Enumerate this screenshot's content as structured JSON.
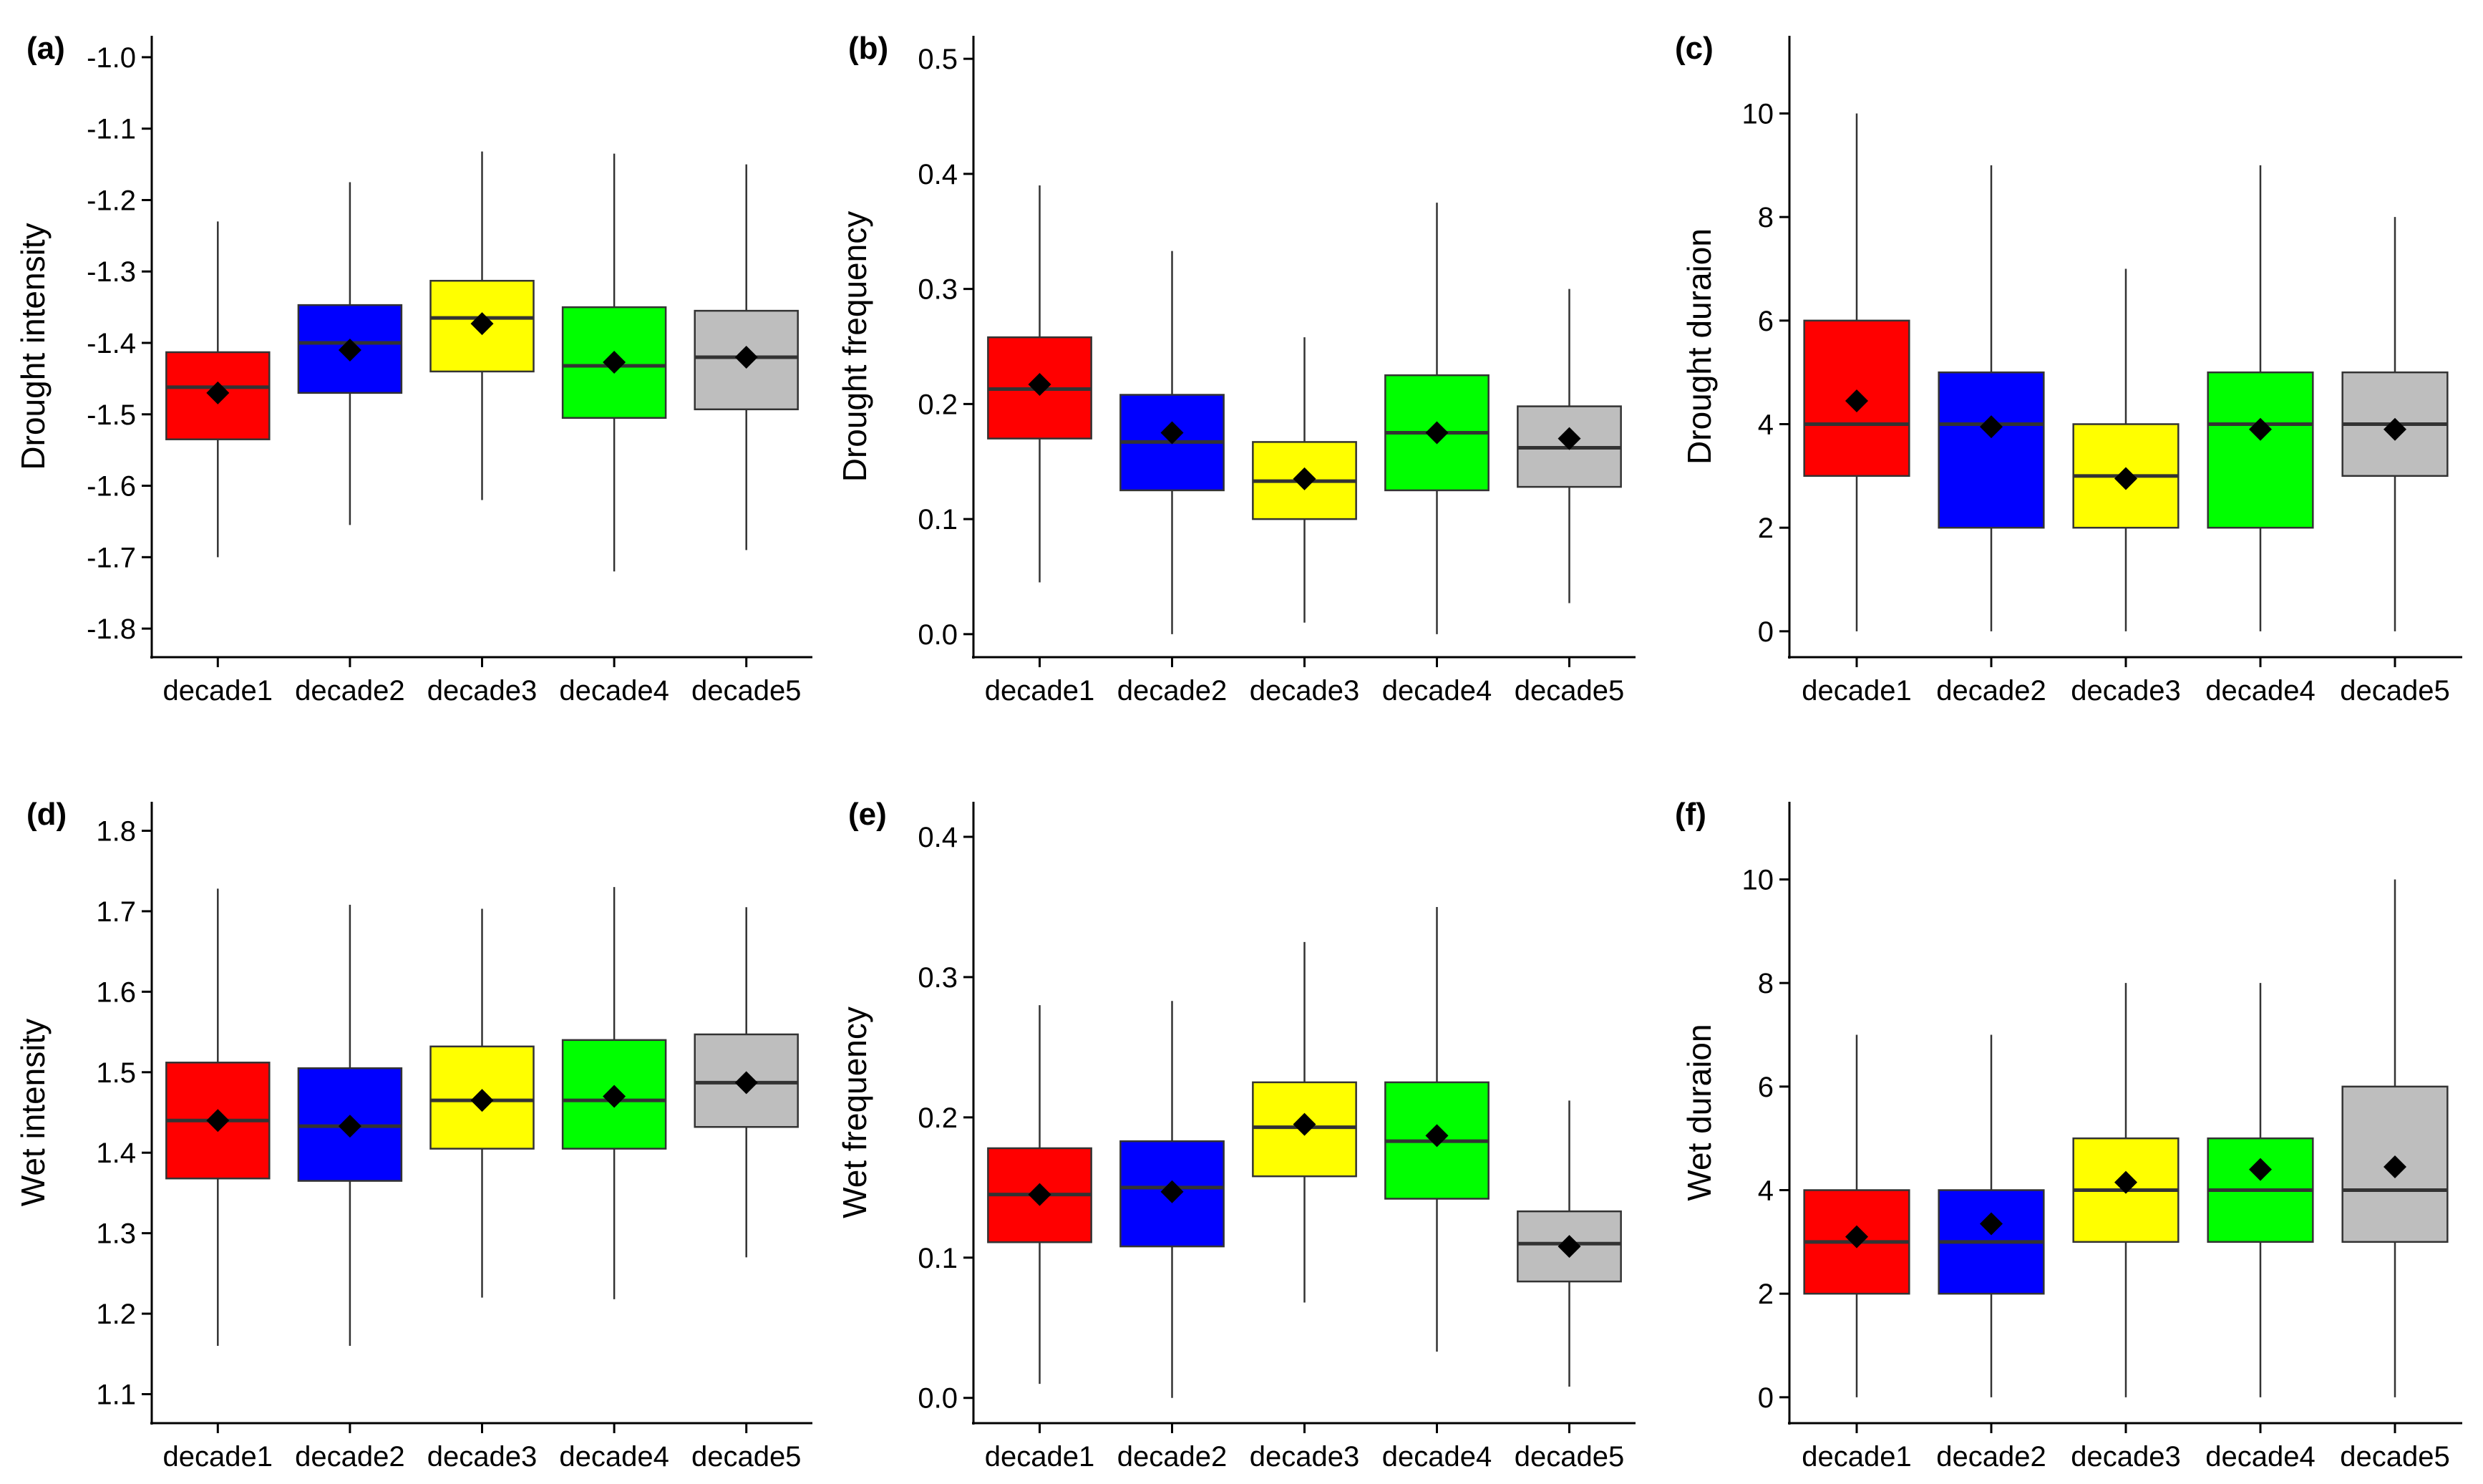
{
  "colors": {
    "decade1": "#ff0000",
    "decade2": "#0000ff",
    "decade3": "#ffff00",
    "decade4": "#00ff00",
    "decade5": "#bebebe",
    "line": "#333333",
    "mean_marker": "#000000"
  },
  "chart_data": [
    {
      "type": "box",
      "panel": "(a)",
      "ylabel": "Drought intensity",
      "categories": [
        "decade1",
        "decade2",
        "decade3",
        "decade4",
        "decade5"
      ],
      "ylim": [
        -1.84,
        -0.97
      ],
      "yticks": [
        -1.8,
        -1.7,
        -1.6,
        -1.5,
        -1.4,
        -1.3,
        -1.2,
        -1.1,
        -1.0
      ],
      "ytick_labels": [
        "-1.8",
        "-1.7",
        "-1.6",
        "-1.5",
        "-1.4",
        "-1.3",
        "-1.2",
        "-1.1",
        "-1.0"
      ],
      "boxes": [
        {
          "whisker_low": -1.7,
          "q1": -1.535,
          "median": -1.462,
          "q3": -1.413,
          "whisker_high": -1.23,
          "mean": -1.47
        },
        {
          "whisker_low": -1.655,
          "q1": -1.47,
          "median": -1.4,
          "q3": -1.347,
          "whisker_high": -1.175,
          "mean": -1.41
        },
        {
          "whisker_low": -1.62,
          "q1": -1.44,
          "median": -1.365,
          "q3": -1.313,
          "whisker_high": -1.132,
          "mean": -1.373
        },
        {
          "whisker_low": -1.72,
          "q1": -1.505,
          "median": -1.432,
          "q3": -1.35,
          "whisker_high": -1.135,
          "mean": -1.427
        },
        {
          "whisker_low": -1.69,
          "q1": -1.493,
          "median": -1.42,
          "q3": -1.355,
          "whisker_high": -1.15,
          "mean": -1.42
        }
      ]
    },
    {
      "type": "box",
      "panel": "(b)",
      "ylabel": "Drought frequency",
      "categories": [
        "decade1",
        "decade2",
        "decade3",
        "decade4",
        "decade5"
      ],
      "ylim": [
        -0.02,
        0.52
      ],
      "yticks": [
        0.0,
        0.1,
        0.2,
        0.3,
        0.4,
        0.5
      ],
      "ytick_labels": [
        "0.0",
        "0.1",
        "0.2",
        "0.3",
        "0.4",
        "0.5"
      ],
      "boxes": [
        {
          "whisker_low": 0.045,
          "q1": 0.17,
          "median": 0.213,
          "q3": 0.258,
          "whisker_high": 0.39,
          "mean": 0.217
        },
        {
          "whisker_low": 0.0,
          "q1": 0.125,
          "median": 0.167,
          "q3": 0.208,
          "whisker_high": 0.333,
          "mean": 0.175
        },
        {
          "whisker_low": 0.01,
          "q1": 0.1,
          "median": 0.133,
          "q3": 0.167,
          "whisker_high": 0.258,
          "mean": 0.135
        },
        {
          "whisker_low": 0.0,
          "q1": 0.125,
          "median": 0.175,
          "q3": 0.225,
          "whisker_high": 0.375,
          "mean": 0.175
        },
        {
          "whisker_low": 0.027,
          "q1": 0.128,
          "median": 0.162,
          "q3": 0.198,
          "whisker_high": 0.3,
          "mean": 0.17
        }
      ]
    },
    {
      "type": "box",
      "panel": "(c)",
      "ylabel": "Drought duraion",
      "categories": [
        "decade1",
        "decade2",
        "decade3",
        "decade4",
        "decade5"
      ],
      "ylim": [
        -0.5,
        11.5
      ],
      "yticks": [
        0,
        2,
        4,
        6,
        8,
        10
      ],
      "ytick_labels": [
        "0",
        "2",
        "4",
        "6",
        "8",
        "10"
      ],
      "boxes": [
        {
          "whisker_low": 0,
          "q1": 3,
          "median": 4,
          "q3": 6,
          "whisker_high": 10,
          "mean": 4.45
        },
        {
          "whisker_low": 0,
          "q1": 2,
          "median": 4,
          "q3": 5,
          "whisker_high": 9,
          "mean": 3.95
        },
        {
          "whisker_low": 0,
          "q1": 2,
          "median": 3,
          "q3": 4,
          "whisker_high": 7,
          "mean": 2.95
        },
        {
          "whisker_low": 0,
          "q1": 2,
          "median": 4,
          "q3": 5,
          "whisker_high": 9,
          "mean": 3.9
        },
        {
          "whisker_low": 0,
          "q1": 3,
          "median": 4,
          "q3": 5,
          "whisker_high": 8,
          "mean": 3.9
        }
      ]
    },
    {
      "type": "box",
      "panel": "(d)",
      "ylabel": "Wet intensity",
      "categories": [
        "decade1",
        "decade2",
        "decade3",
        "decade4",
        "decade5"
      ],
      "ylim": [
        1.064,
        1.836
      ],
      "yticks": [
        1.1,
        1.2,
        1.3,
        1.4,
        1.5,
        1.6,
        1.7,
        1.8
      ],
      "ytick_labels": [
        "1.1",
        "1.2",
        "1.3",
        "1.4",
        "1.5",
        "1.6",
        "1.7",
        "1.8"
      ],
      "boxes": [
        {
          "whisker_low": 1.16,
          "q1": 1.368,
          "median": 1.44,
          "q3": 1.512,
          "whisker_high": 1.728,
          "mean": 1.44
        },
        {
          "whisker_low": 1.16,
          "q1": 1.365,
          "median": 1.433,
          "q3": 1.505,
          "whisker_high": 1.708,
          "mean": 1.433
        },
        {
          "whisker_low": 1.22,
          "q1": 1.405,
          "median": 1.465,
          "q3": 1.532,
          "whisker_high": 1.703,
          "mean": 1.465
        },
        {
          "whisker_low": 1.218,
          "q1": 1.405,
          "median": 1.465,
          "q3": 1.54,
          "whisker_high": 1.73,
          "mean": 1.47
        },
        {
          "whisker_low": 1.27,
          "q1": 1.432,
          "median": 1.487,
          "q3": 1.547,
          "whisker_high": 1.705,
          "mean": 1.487
        }
      ]
    },
    {
      "type": "box",
      "panel": "(e)",
      "ylabel": "Wet frequency",
      "categories": [
        "decade1",
        "decade2",
        "decade3",
        "decade4",
        "decade5"
      ],
      "ylim": [
        -0.018,
        0.425
      ],
      "yticks": [
        0.0,
        0.1,
        0.2,
        0.3,
        0.4
      ],
      "ytick_labels": [
        "0.0",
        "0.1",
        "0.2",
        "0.3",
        "0.4"
      ],
      "boxes": [
        {
          "whisker_low": 0.01,
          "q1": 0.111,
          "median": 0.145,
          "q3": 0.178,
          "whisker_high": 0.28,
          "mean": 0.145
        },
        {
          "whisker_low": 0.0,
          "q1": 0.108,
          "median": 0.15,
          "q3": 0.183,
          "whisker_high": 0.283,
          "mean": 0.147
        },
        {
          "whisker_low": 0.068,
          "q1": 0.158,
          "median": 0.193,
          "q3": 0.225,
          "whisker_high": 0.325,
          "mean": 0.195
        },
        {
          "whisker_low": 0.033,
          "q1": 0.142,
          "median": 0.183,
          "q3": 0.225,
          "whisker_high": 0.35,
          "mean": 0.187
        },
        {
          "whisker_low": 0.008,
          "q1": 0.083,
          "median": 0.11,
          "q3": 0.133,
          "whisker_high": 0.212,
          "mean": 0.108
        }
      ]
    },
    {
      "type": "box",
      "panel": "(f)",
      "ylabel": "Wet duraion",
      "categories": [
        "decade1",
        "decade2",
        "decade3",
        "decade4",
        "decade5"
      ],
      "ylim": [
        -0.5,
        11.5
      ],
      "yticks": [
        0,
        2,
        4,
        6,
        8,
        10
      ],
      "ytick_labels": [
        "0",
        "2",
        "4",
        "6",
        "8",
        "10"
      ],
      "boxes": [
        {
          "whisker_low": 0,
          "q1": 2,
          "median": 3,
          "q3": 4,
          "whisker_high": 7,
          "mean": 3.1
        },
        {
          "whisker_low": 0,
          "q1": 2,
          "median": 3,
          "q3": 4,
          "whisker_high": 7,
          "mean": 3.35
        },
        {
          "whisker_low": 0,
          "q1": 3,
          "median": 4,
          "q3": 5,
          "whisker_high": 8,
          "mean": 4.15
        },
        {
          "whisker_low": 0,
          "q1": 3,
          "median": 4,
          "q3": 5,
          "whisker_high": 8,
          "mean": 4.4
        },
        {
          "whisker_low": 0,
          "q1": 3,
          "median": 4,
          "q3": 6,
          "whisker_high": 10,
          "mean": 4.45
        }
      ]
    }
  ]
}
